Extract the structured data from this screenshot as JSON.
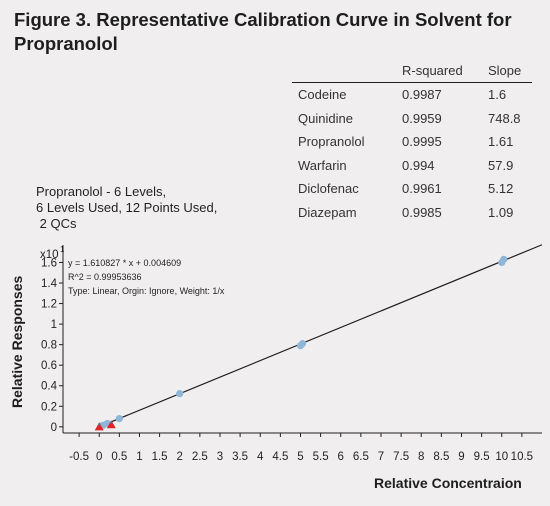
{
  "figure_title": "Figure 3. Representative Calibration Curve in Solvent for Propranolol",
  "summary_table": {
    "headers": [
      "",
      "R-squared",
      "Slope"
    ],
    "rows": [
      [
        "Codeine",
        "0.9987",
        "1.6"
      ],
      [
        "Quinidine",
        "0.9959",
        "748.8"
      ],
      [
        "Propranolol",
        "0.9995",
        "1.61"
      ],
      [
        "Warfarin",
        "0.994",
        "57.9"
      ],
      [
        "Diclofenac",
        "0.9961",
        "5.12"
      ],
      [
        "Diazepam",
        "0.9985",
        "1.09"
      ]
    ]
  },
  "calibration_label": {
    "line1": "Propranolol - 6 Levels,",
    "line2": "6 Levels Used, 12 Points Used,",
    "line3": " 2 QCs"
  },
  "colors": {
    "calibrator": "#8db6d8",
    "qc": "#e0242b",
    "qc_tip": "#6a6a8c",
    "line": "#231f20",
    "background": "#f0eeef"
  },
  "chart_data": {
    "type": "scatter",
    "xlabel": "Relative Concentraion",
    "ylabel": "Relative Responses",
    "y_multiplier": "x10^1",
    "xlim": [
      -0.9,
      11.0
    ],
    "ylim": [
      -0.06,
      1.77
    ],
    "x_ticks": [
      -0.5,
      0,
      0.5,
      1,
      1.5,
      2,
      2.5,
      3,
      3.5,
      4,
      4.5,
      5,
      5.5,
      6,
      6.5,
      7,
      7.5,
      8,
      8.5,
      9,
      9.5,
      10,
      10.5
    ],
    "x_tick_labels": [
      "-0.5",
      "0",
      "0.5",
      "1",
      "1.5",
      "2",
      "2.5",
      "3",
      "3.5",
      "4",
      "4.5",
      "5",
      "5.5",
      "6",
      "6.5",
      "7",
      "7.5",
      "8",
      "8.5",
      "9",
      "9.5",
      "10",
      "10.5"
    ],
    "y_ticks": [
      0,
      0.2,
      0.4,
      0.6,
      0.8,
      1,
      1.2,
      1.4,
      1.6
    ],
    "y_tick_labels": [
      "0",
      "0.2",
      "0.4",
      "0.6",
      "0.8",
      "1",
      "1.2",
      "1.4",
      "1.6"
    ],
    "equation": "y = 1.610827 * x + 0.004609",
    "r_squared_text": "R^2 = 0.99953636",
    "fit_info": "Type: Linear, Orgin: Ignore, Weight: 1/x",
    "fit": {
      "slope": 0.1610827,
      "intercept": 0.0004609,
      "x_range": [
        0,
        11.0
      ]
    },
    "series": [
      {
        "name": "Calibrators",
        "points": [
          [
            0.05,
            0.008
          ],
          [
            0.1,
            0.016
          ],
          [
            0.2,
            0.033
          ],
          [
            0.5,
            0.08
          ],
          [
            2.0,
            0.323
          ],
          [
            5.0,
            0.79
          ],
          [
            5.05,
            0.81
          ],
          [
            10.0,
            1.6
          ],
          [
            10.05,
            1.63
          ]
        ]
      },
      {
        "name": "QCs",
        "points": [
          [
            0.0,
            -0.005
          ],
          [
            0.3,
            0.015
          ]
        ]
      }
    ]
  }
}
